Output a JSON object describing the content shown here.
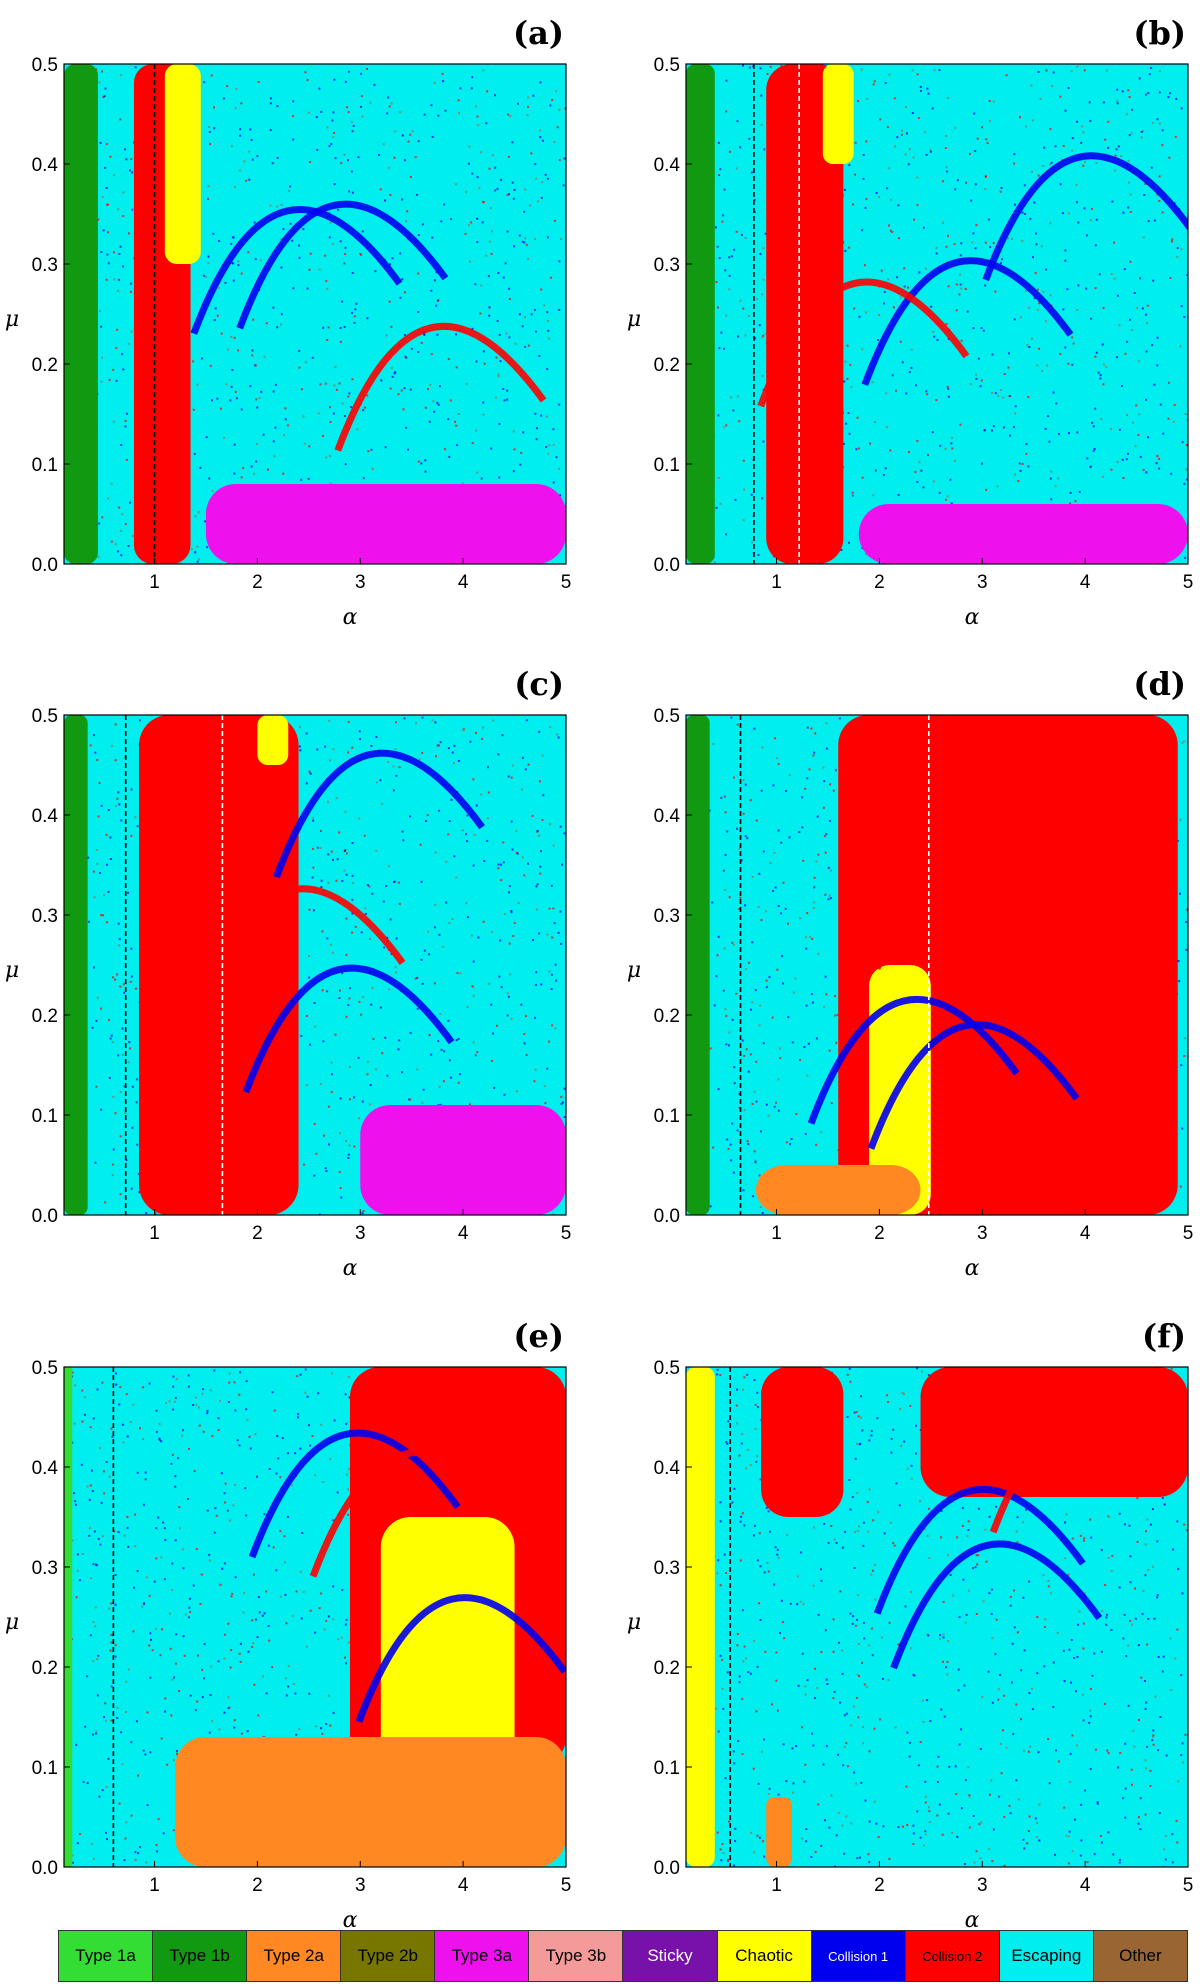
{
  "legend": [
    {
      "label": "Type 1a",
      "color": "#33dd33",
      "text_color": "#000000"
    },
    {
      "label": "Type 1b",
      "color": "#119911",
      "text_color": "#000000"
    },
    {
      "label": "Type 2a",
      "color": "#ff8822",
      "text_color": "#000000"
    },
    {
      "label": "Type 2b",
      "color": "#777700",
      "text_color": "#000000"
    },
    {
      "label": "Type 3a",
      "color": "#ee11ee",
      "text_color": "#000000"
    },
    {
      "label": "Type 3b",
      "color": "#f49a9a",
      "text_color": "#000000"
    },
    {
      "label": "Sticky",
      "color": "#7711aa",
      "text_color": "#ffffff"
    },
    {
      "label": "Chaotic",
      "color": "#ffff00",
      "text_color": "#000000"
    },
    {
      "label": "Collision 1",
      "color": "#0000ee",
      "text_color": "#ffffff",
      "small": true
    },
    {
      "label": "Collision 2",
      "color": "#ff0000",
      "text_color": "#000000",
      "small": true
    },
    {
      "label": "Escaping",
      "color": "#00eeee",
      "text_color": "#000000"
    },
    {
      "label": "Other",
      "color": "#996633",
      "text_color": "#000000"
    }
  ],
  "chart_data": [
    {
      "type": "heatmap",
      "panel_label": "(a)",
      "xlabel": "α",
      "ylabel": "μ",
      "xlim": [
        0,
        5
      ],
      "ylim": [
        0,
        0.5
      ],
      "xticks": [
        "1",
        "2",
        "3",
        "4",
        "5"
      ],
      "yticks": [
        "0.0",
        "0.1",
        "0.2",
        "0.3",
        "0.4",
        "0.5"
      ],
      "dashed_lines": [
        {
          "alpha": 1.0,
          "color": "#000000"
        }
      ],
      "dominant_background": "Escaping",
      "regions": [
        {
          "class": "Type 1b",
          "alpha_range": [
            0,
            0.45
          ],
          "mu_range": [
            0,
            0.5
          ]
        },
        {
          "class": "Collision 2",
          "alpha_range": [
            0.8,
            1.35
          ],
          "mu_range": [
            0,
            0.5
          ]
        },
        {
          "class": "Chaotic",
          "alpha_range": [
            1.1,
            1.45
          ],
          "mu_range": [
            0.3,
            0.5
          ]
        },
        {
          "class": "Type 3a",
          "alpha_range": [
            1.5,
            5
          ],
          "mu_range": [
            0,
            0.08
          ]
        }
      ]
    },
    {
      "type": "heatmap",
      "panel_label": "(b)",
      "xlabel": "α",
      "ylabel": "μ",
      "xlim": [
        0,
        5
      ],
      "ylim": [
        0,
        0.5
      ],
      "xticks": [
        "1",
        "2",
        "3",
        "4",
        "5"
      ],
      "yticks": [
        "0.0",
        "0.1",
        "0.2",
        "0.3",
        "0.4",
        "0.5"
      ],
      "dashed_lines": [
        {
          "alpha": 0.78,
          "color": "#000000"
        },
        {
          "alpha": 1.22,
          "color": "#ffffff"
        }
      ],
      "dominant_background": "Escaping",
      "regions": [
        {
          "class": "Type 1b",
          "alpha_range": [
            0,
            0.4
          ],
          "mu_range": [
            0,
            0.5
          ]
        },
        {
          "class": "Collision 2",
          "alpha_range": [
            0.9,
            1.65
          ],
          "mu_range": [
            0,
            0.5
          ]
        },
        {
          "class": "Chaotic",
          "alpha_range": [
            1.45,
            1.75
          ],
          "mu_range": [
            0.4,
            0.5
          ]
        },
        {
          "class": "Type 3a",
          "alpha_range": [
            1.8,
            5
          ],
          "mu_range": [
            0,
            0.06
          ]
        }
      ]
    },
    {
      "type": "heatmap",
      "panel_label": "(c)",
      "xlabel": "α",
      "ylabel": "μ",
      "xlim": [
        0,
        5
      ],
      "ylim": [
        0,
        0.5
      ],
      "xticks": [
        "1",
        "2",
        "3",
        "4",
        "5"
      ],
      "yticks": [
        "0.0",
        "0.1",
        "0.2",
        "0.3",
        "0.4",
        "0.5"
      ],
      "dashed_lines": [
        {
          "alpha": 0.72,
          "color": "#000000"
        },
        {
          "alpha": 1.66,
          "color": "#ffffff"
        }
      ],
      "dominant_background": "Escaping",
      "regions": [
        {
          "class": "Type 1b",
          "alpha_range": [
            0,
            0.35
          ],
          "mu_range": [
            0,
            0.5
          ]
        },
        {
          "class": "Collision 2",
          "alpha_range": [
            0.85,
            2.4
          ],
          "mu_range": [
            0,
            0.5
          ]
        },
        {
          "class": "Chaotic",
          "alpha_range": [
            2.0,
            2.3
          ],
          "mu_range": [
            0.45,
            0.5
          ]
        },
        {
          "class": "Type 3a",
          "alpha_range": [
            3.0,
            5
          ],
          "mu_range": [
            0,
            0.11
          ]
        }
      ]
    },
    {
      "type": "heatmap",
      "panel_label": "(d)",
      "xlabel": "α",
      "ylabel": "μ",
      "xlim": [
        0,
        5
      ],
      "ylim": [
        0,
        0.5
      ],
      "xticks": [
        "1",
        "2",
        "3",
        "4",
        "5"
      ],
      "yticks": [
        "0.0",
        "0.1",
        "0.2",
        "0.3",
        "0.4",
        "0.5"
      ],
      "dashed_lines": [
        {
          "alpha": 0.65,
          "color": "#000000"
        },
        {
          "alpha": 2.48,
          "color": "#ffffff"
        }
      ],
      "dominant_background": "Escaping",
      "regions": [
        {
          "class": "Type 1b",
          "alpha_range": [
            0,
            0.35
          ],
          "mu_range": [
            0,
            0.5
          ]
        },
        {
          "class": "Collision 2",
          "alpha_range": [
            1.6,
            4.9
          ],
          "mu_range": [
            0,
            0.5
          ]
        },
        {
          "class": "Chaotic",
          "alpha_range": [
            1.9,
            2.5
          ],
          "mu_range": [
            0,
            0.25
          ]
        },
        {
          "class": "Type 2a",
          "alpha_range": [
            0.8,
            2.4
          ],
          "mu_range": [
            0,
            0.05
          ]
        }
      ]
    },
    {
      "type": "heatmap",
      "panel_label": "(e)",
      "xlabel": "α",
      "ylabel": "μ",
      "xlim": [
        0,
        5
      ],
      "ylim": [
        0,
        0.5
      ],
      "xticks": [
        "1",
        "2",
        "3",
        "4",
        "5"
      ],
      "yticks": [
        "0.0",
        "0.1",
        "0.2",
        "0.3",
        "0.4",
        "0.5"
      ],
      "dashed_lines": [
        {
          "alpha": 0.6,
          "color": "#000000"
        }
      ],
      "dominant_background": "Escaping",
      "regions": [
        {
          "class": "Type 1a",
          "alpha_range": [
            0,
            0.2
          ],
          "mu_range": [
            0,
            0.5
          ]
        },
        {
          "class": "Collision 2",
          "alpha_range": [
            2.9,
            5
          ],
          "mu_range": [
            0.1,
            0.5
          ]
        },
        {
          "class": "Chaotic",
          "alpha_range": [
            3.2,
            4.5
          ],
          "mu_range": [
            0.05,
            0.35
          ]
        },
        {
          "class": "Type 2a",
          "alpha_range": [
            1.2,
            5
          ],
          "mu_range": [
            0,
            0.13
          ]
        }
      ]
    },
    {
      "type": "heatmap",
      "panel_label": "(f)",
      "xlabel": "α",
      "ylabel": "μ",
      "xlim": [
        0,
        5
      ],
      "ylim": [
        0,
        0.5
      ],
      "xticks": [
        "1",
        "2",
        "3",
        "4",
        "5"
      ],
      "yticks": [
        "0.0",
        "0.1",
        "0.2",
        "0.3",
        "0.4",
        "0.5"
      ],
      "dashed_lines": [
        {
          "alpha": 0.55,
          "color": "#000000"
        }
      ],
      "dominant_background": "Escaping",
      "regions": [
        {
          "class": "Chaotic",
          "alpha_range": [
            0.05,
            0.4
          ],
          "mu_range": [
            0,
            0.5
          ]
        },
        {
          "class": "Collision 2",
          "alpha_range": [
            0.85,
            1.65
          ],
          "mu_range": [
            0.35,
            0.5
          ]
        },
        {
          "class": "Collision 2",
          "alpha_range": [
            2.4,
            5
          ],
          "mu_range": [
            0.37,
            0.5
          ]
        },
        {
          "class": "Type 2a",
          "alpha_range": [
            0.9,
            1.15
          ],
          "mu_range": [
            0,
            0.07
          ]
        }
      ]
    }
  ]
}
